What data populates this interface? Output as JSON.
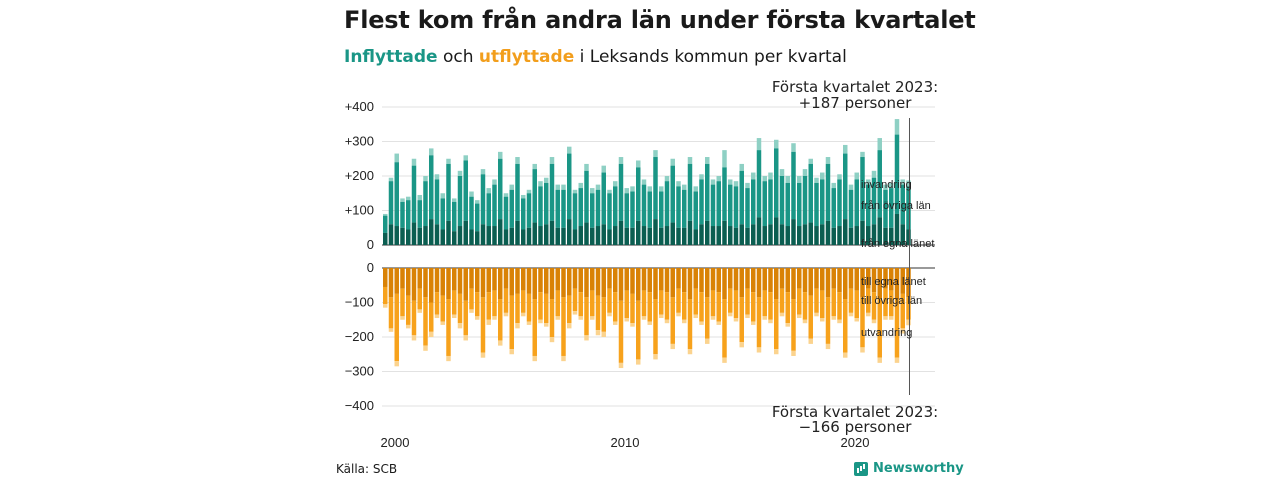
{
  "title": "Flest kom från andra län under första kvartalet",
  "subtitle": {
    "in_label": "Inflyttade",
    "mid": "och",
    "out_label": "utflyttade",
    "rest": "i Leksands kommun per kvartal"
  },
  "source": "Källa: SCB",
  "brand": "Newsworthy",
  "colors": {
    "in_dark": "#0b5e51",
    "in_mid": "#1a9686",
    "in_light": "#8ed0c4",
    "out_dark": "#d98205",
    "out_mid": "#f7a21c",
    "out_light": "#fbd38e",
    "grid": "#e2e2e2"
  },
  "chart_data": {
    "type": "bar",
    "x_ticks": [
      "2000",
      "2010",
      "2020"
    ],
    "y_ticks": [
      "+400",
      "+300",
      "+200",
      "+100",
      "0",
      "0",
      "−100",
      "−200",
      "−300",
      "−400"
    ],
    "inflow_ylim": [
      0,
      400
    ],
    "outflow_ylim": [
      -400,
      0
    ],
    "first_quarter": "2000 Q1",
    "last_quarter": "2023 Q1",
    "annotation_top": [
      "Första kvartalet 2023:",
      "+187 personer"
    ],
    "annotation_bottom": [
      "Första kvartalet 2023:",
      "−166 personer"
    ],
    "series_labels": {
      "inflow_foreign": "invandring",
      "inflow_other": "från övriga län",
      "inflow_own": "från egna länet",
      "outflow_own": "till egna länet",
      "outflow_other": "till övriga län",
      "outflow_foreign": "utvandring"
    },
    "inflow_total": [
      90,
      195,
      265,
      135,
      140,
      250,
      145,
      200,
      280,
      205,
      150,
      250,
      135,
      215,
      260,
      155,
      130,
      220,
      165,
      190,
      270,
      150,
      175,
      255,
      145,
      160,
      235,
      185,
      195,
      255,
      175,
      175,
      285,
      160,
      180,
      235,
      165,
      175,
      230,
      160,
      185,
      255,
      165,
      170,
      245,
      190,
      170,
      275,
      170,
      200,
      250,
      185,
      175,
      255,
      170,
      205,
      255,
      190,
      200,
      275,
      190,
      185,
      235,
      180,
      210,
      310,
      200,
      210,
      305,
      220,
      200,
      295,
      200,
      220,
      250,
      195,
      210,
      255,
      180,
      205,
      290,
      175,
      210,
      270,
      190,
      215,
      310,
      175,
      180,
      365,
      190,
      187,
      0,
      0,
      0,
      0
    ],
    "inflow_own_other": [
      85,
      185,
      240,
      125,
      130,
      230,
      130,
      185,
      260,
      190,
      135,
      235,
      125,
      200,
      245,
      140,
      120,
      205,
      150,
      175,
      250,
      140,
      160,
      235,
      135,
      150,
      220,
      170,
      180,
      235,
      160,
      160,
      265,
      150,
      165,
      215,
      150,
      160,
      210,
      150,
      170,
      235,
      150,
      155,
      225,
      175,
      155,
      255,
      155,
      185,
      230,
      170,
      160,
      235,
      155,
      190,
      235,
      175,
      185,
      225,
      175,
      170,
      215,
      165,
      190,
      275,
      185,
      190,
      280,
      200,
      180,
      270,
      180,
      200,
      235,
      180,
      190,
      235,
      165,
      190,
      265,
      160,
      190,
      255,
      175,
      195,
      275,
      160,
      165,
      320,
      175,
      170,
      0,
      0,
      0,
      0
    ],
    "inflow_own": [
      35,
      60,
      55,
      50,
      45,
      65,
      50,
      55,
      75,
      60,
      45,
      70,
      40,
      55,
      70,
      45,
      40,
      60,
      55,
      55,
      75,
      45,
      50,
      70,
      45,
      50,
      65,
      55,
      60,
      70,
      50,
      50,
      75,
      45,
      55,
      65,
      50,
      55,
      60,
      45,
      55,
      70,
      50,
      50,
      70,
      55,
      50,
      75,
      50,
      55,
      65,
      50,
      50,
      70,
      45,
      60,
      70,
      55,
      55,
      70,
      55,
      50,
      60,
      50,
      60,
      80,
      55,
      60,
      80,
      60,
      55,
      75,
      55,
      60,
      65,
      55,
      60,
      70,
      50,
      55,
      75,
      50,
      55,
      70,
      55,
      60,
      80,
      50,
      50,
      90,
      60,
      45,
      0,
      0,
      0,
      0
    ],
    "outflow_total": [
      115,
      185,
      285,
      150,
      175,
      210,
      130,
      240,
      200,
      145,
      165,
      270,
      145,
      175,
      210,
      130,
      150,
      260,
      165,
      150,
      225,
      140,
      250,
      175,
      140,
      165,
      270,
      160,
      170,
      215,
      150,
      270,
      175,
      135,
      150,
      210,
      150,
      195,
      200,
      140,
      165,
      290,
      155,
      170,
      280,
      150,
      165,
      265,
      145,
      160,
      235,
      140,
      160,
      250,
      145,
      165,
      220,
      150,
      165,
      275,
      140,
      155,
      230,
      145,
      165,
      245,
      150,
      160,
      250,
      140,
      170,
      255,
      145,
      160,
      220,
      140,
      155,
      235,
      150,
      160,
      260,
      140,
      155,
      245,
      140,
      160,
      275,
      150,
      150,
      275,
      190,
      166,
      0,
      0,
      0,
      0
    ],
    "outflow_own_other": [
      105,
      175,
      270,
      140,
      165,
      195,
      120,
      225,
      185,
      135,
      155,
      255,
      135,
      160,
      195,
      120,
      140,
      245,
      150,
      140,
      210,
      130,
      235,
      160,
      130,
      155,
      255,
      150,
      160,
      200,
      140,
      255,
      160,
      125,
      140,
      195,
      140,
      180,
      185,
      130,
      155,
      275,
      145,
      160,
      265,
      140,
      155,
      250,
      135,
      150,
      220,
      130,
      150,
      235,
      135,
      155,
      205,
      140,
      155,
      260,
      130,
      145,
      215,
      135,
      155,
      230,
      140,
      150,
      235,
      130,
      160,
      240,
      135,
      150,
      205,
      130,
      145,
      220,
      140,
      150,
      245,
      130,
      145,
      230,
      130,
      150,
      260,
      140,
      140,
      260,
      175,
      150,
      0,
      0,
      0,
      0
    ],
    "outflow_own": [
      55,
      85,
      75,
      60,
      80,
      95,
      60,
      85,
      100,
      70,
      80,
      90,
      65,
      75,
      95,
      60,
      70,
      85,
      70,
      65,
      90,
      60,
      80,
      75,
      65,
      75,
      90,
      70,
      75,
      90,
      65,
      85,
      80,
      60,
      70,
      85,
      65,
      80,
      85,
      60,
      70,
      95,
      65,
      75,
      95,
      65,
      70,
      90,
      65,
      70,
      85,
      60,
      70,
      90,
      60,
      70,
      85,
      65,
      70,
      90,
      60,
      65,
      85,
      60,
      70,
      85,
      65,
      70,
      90,
      60,
      70,
      90,
      60,
      70,
      80,
      60,
      65,
      85,
      60,
      70,
      90,
      60,
      65,
      85,
      60,
      70,
      90,
      60,
      65,
      90,
      75,
      85,
      0,
      0,
      0,
      0
    ]
  }
}
